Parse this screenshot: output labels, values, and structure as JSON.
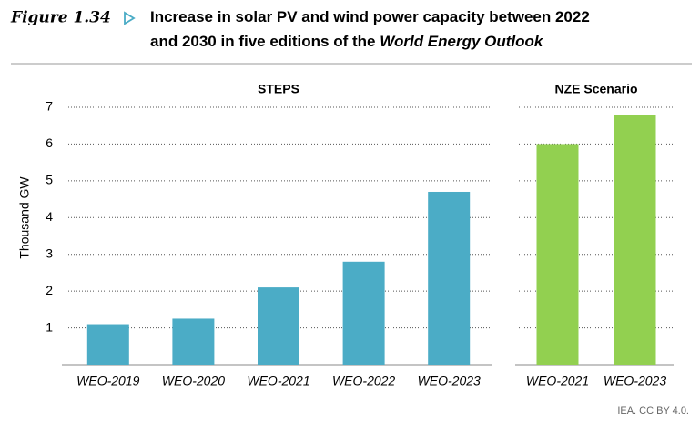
{
  "figure": {
    "label": "Figure 1.34",
    "title": "Increase in solar PV and wind power capacity between 2022 and 2030 in five editions of the",
    "title_italic": "World Energy Outlook",
    "source": "IEA. CC BY 4.0."
  },
  "chart_data": [
    {
      "type": "bar",
      "title": "STEPS",
      "y_label": "Thousand GW",
      "categories": [
        "WEO-2019",
        "WEO-2020",
        "WEO-2021",
        "WEO-2022",
        "WEO-2023"
      ],
      "values": [
        1.1,
        1.25,
        2.1,
        2.8,
        4.7
      ],
      "color": "#4bacc6",
      "ylim": [
        0,
        7
      ],
      "yticks": [
        1,
        2,
        3,
        4,
        5,
        6,
        7
      ],
      "tick_labels": true,
      "grid": true
    },
    {
      "type": "bar",
      "title": "NZE Scenario",
      "categories": [
        "WEO-2021",
        "WEO-2023"
      ],
      "values": [
        6.0,
        6.8
      ],
      "color": "#92d050",
      "ylim": [
        0,
        7
      ],
      "yticks": [
        1,
        2,
        3,
        4,
        5,
        6,
        7
      ],
      "tick_labels": false,
      "grid": true
    }
  ]
}
